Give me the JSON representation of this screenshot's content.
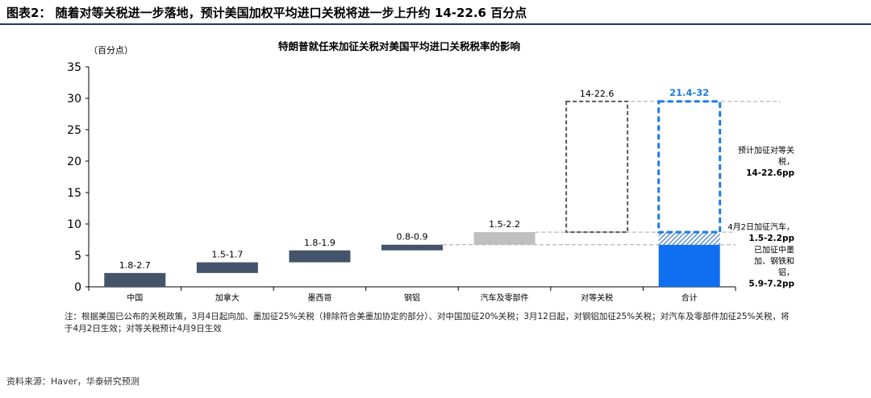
{
  "figure": {
    "title": "图表2： 随着对等关税进一步落地，预计美国加权平均进口关税将进一步上升约 14-22.6 百分点",
    "note": "注：根据美国已公布的关税政策，3月4日起向加、墨加征25%关税（排除符合美墨加协定的部分）、对中国加征20%关税；3月12日起，对钢铝加征25%关税；对汽车及零部件加征25%关税，将于4月2日生效；对等关税预计4月9日生效",
    "source": "资料来源：Haver，华泰研究预测"
  },
  "chart_data": {
    "type": "bar",
    "subtype": "floating-waterfall",
    "title": "特朗普就任来加征关税对美国平均进口关税税率的影响",
    "ylabel": "（百分点）",
    "xlabel": "",
    "ylim": [
      0,
      35
    ],
    "yticks": [
      0,
      5,
      10,
      15,
      20,
      25,
      30,
      35
    ],
    "grid": false,
    "categories": [
      "中国",
      "加拿大",
      "墨西哥",
      "钢铝",
      "汽车及零部件",
      "对等关税",
      "合计"
    ],
    "bars": [
      {
        "category": "中国",
        "low": 0.0,
        "high": 2.2,
        "label": "1.8-2.7",
        "color": "#44546a",
        "style": "solid"
      },
      {
        "category": "加拿大",
        "low": 2.2,
        "high": 3.9,
        "label": "1.5-1.7",
        "color": "#44546a",
        "style": "solid"
      },
      {
        "category": "墨西哥",
        "low": 3.9,
        "high": 5.8,
        "label": "1.8-1.9",
        "color": "#44546a",
        "style": "solid"
      },
      {
        "category": "钢铝",
        "low": 5.8,
        "high": 6.7,
        "label": "0.8-0.9",
        "color": "#44546a",
        "style": "solid"
      },
      {
        "category": "汽车及零部件",
        "low": 6.7,
        "high": 8.7,
        "label": "1.5-2.2",
        "color": "#bfbfbf",
        "style": "solid"
      },
      {
        "category": "对等关税",
        "low": 8.7,
        "high": 29.5,
        "label": "14-22.6",
        "color": "#595959",
        "style": "dashed-outline"
      }
    ],
    "total": {
      "category": "合计",
      "label": "21.4-32",
      "label_color": "#1e7be0",
      "segments": [
        {
          "low": 0.0,
          "high": 6.7,
          "color": "#0f6ff0",
          "style": "solid"
        },
        {
          "low": 6.7,
          "high": 8.7,
          "color": "#2f6fd6",
          "style": "hatched"
        },
        {
          "low": 8.7,
          "high": 29.5,
          "color": "#1e7be0",
          "style": "dashed-outline"
        }
      ]
    },
    "reference_lines": [
      29.5,
      8.7,
      6.7
    ],
    "annotations": [
      {
        "lines": [
          "预计加征对等关",
          "税，"
        ],
        "bold": "14-22.6pp",
        "y": 20
      },
      {
        "lines": [
          "4月2日加征汽车，"
        ],
        "bold": "1.5-2.2pp",
        "y": 8.7
      },
      {
        "lines": [
          "已加征中墨",
          "加、钢铁和",
          "铝，"
        ],
        "bold": "5.9-7.2pp",
        "y": 3.3
      }
    ]
  }
}
